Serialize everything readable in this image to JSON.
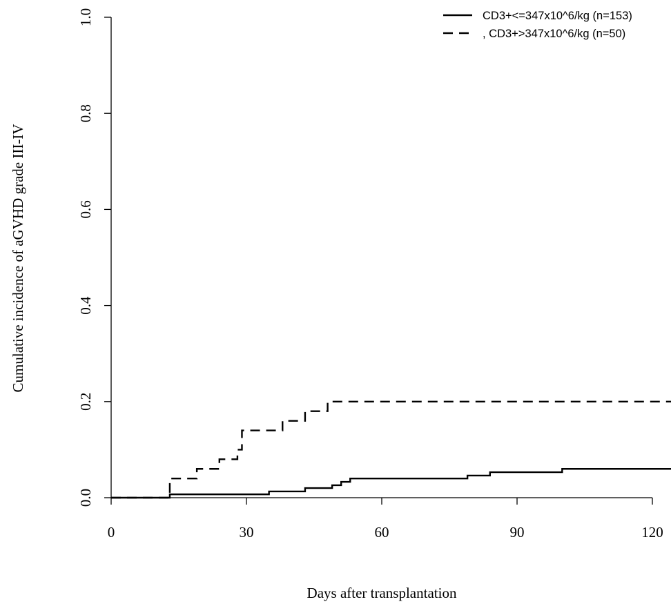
{
  "chart_data": {
    "type": "line",
    "step": true,
    "title": "",
    "xlabel": "Days after transplantation",
    "ylabel": "Cumulative incidence of aGVHD grade III-IV",
    "xlim": [
      0,
      125
    ],
    "ylim": [
      0,
      1
    ],
    "xticks": [
      0,
      30,
      60,
      90,
      120
    ],
    "xtick_labels": [
      "0",
      "30",
      "60",
      "90",
      "120"
    ],
    "yticks": [
      0,
      0.2,
      0.4,
      0.6,
      0.8,
      1.0
    ],
    "ytick_labels": [
      "0.0",
      "0.2",
      "0.4",
      "0.6",
      "0.8",
      "1.0"
    ],
    "grid": false,
    "legend_position": "top-right",
    "series": [
      {
        "name": "CD3+<=347x10^6/kg (n=153)",
        "line_style": "solid",
        "color": "#000000",
        "x": [
          0,
          12,
          13,
          35,
          43,
          49,
          51,
          53,
          79,
          84,
          100,
          125
        ],
        "y": [
          0,
          0,
          0.007,
          0.013,
          0.02,
          0.026,
          0.033,
          0.04,
          0.046,
          0.053,
          0.06,
          0.06
        ]
      },
      {
        "name": ", CD3+>347x10^6/kg (n=50)",
        "line_style": "dashed",
        "color": "#000000",
        "x": [
          0,
          13,
          19,
          24,
          28,
          29,
          38,
          43,
          48,
          125
        ],
        "y": [
          0,
          0.04,
          0.06,
          0.08,
          0.1,
          0.14,
          0.16,
          0.18,
          0.2,
          0.2
        ]
      }
    ]
  }
}
